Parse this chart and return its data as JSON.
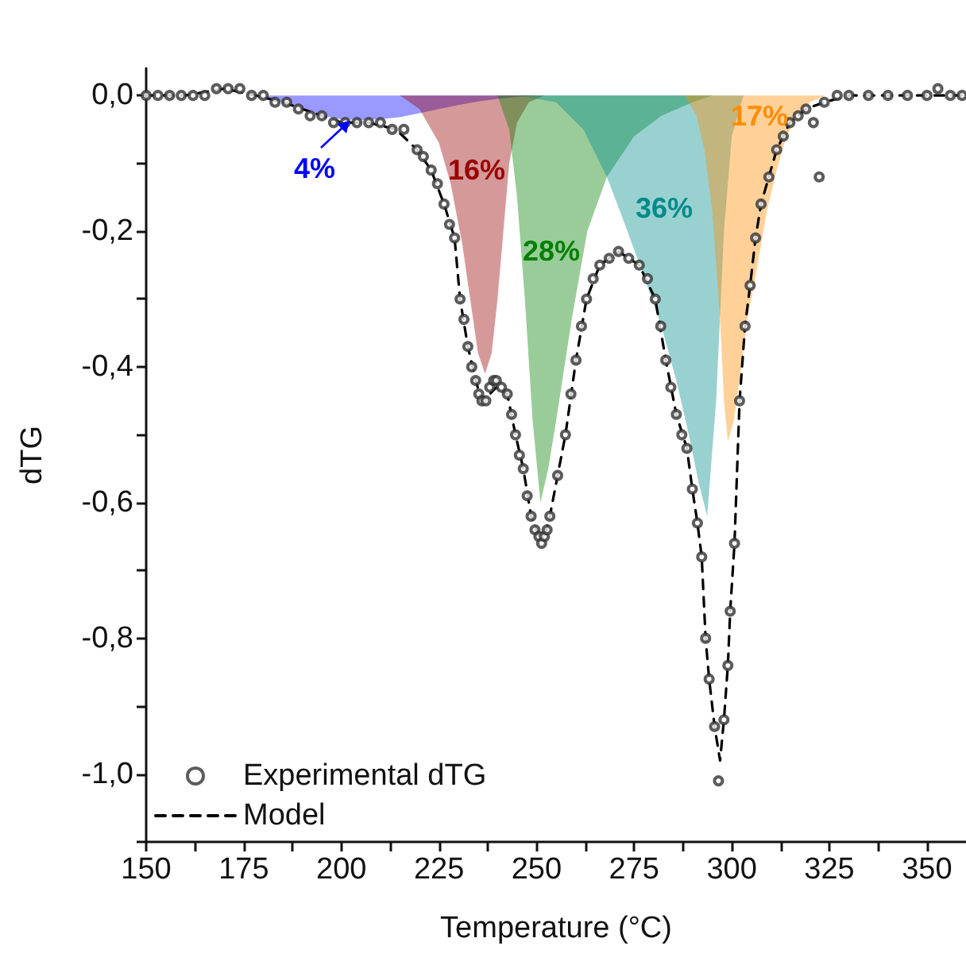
{
  "chart_data": {
    "type": "line",
    "xlabel": "Temperature (°C)",
    "ylabel": "dTG",
    "xlim": [
      150,
      360
    ],
    "ylim": [
      -1.1,
      0.04
    ],
    "xticks": [
      150,
      {
        "value": 162.5,
        "label": null
      },
      175,
      {
        "value": 187.5,
        "label": null
      },
      200,
      {
        "value": 212.5,
        "label": null
      },
      225,
      {
        "value": 237.5,
        "label": null
      },
      250,
      {
        "value": 262.5,
        "label": null
      },
      275,
      {
        "value": 287.5,
        "label": null
      },
      300,
      {
        "value": 312.5,
        "label": null
      },
      325,
      {
        "value": 337.5,
        "label": null
      },
      350
    ],
    "yticks": [
      {
        "value": 0,
        "label": "0,0"
      },
      {
        "value": -0.1,
        "label": null
      },
      {
        "value": -0.2,
        "label": "-0,2"
      },
      {
        "value": -0.3,
        "label": null
      },
      {
        "value": -0.4,
        "label": "-0,4"
      },
      {
        "value": -0.5,
        "label": null
      },
      {
        "value": -0.6,
        "label": "-0,6"
      },
      {
        "value": -0.7,
        "label": null
      },
      {
        "value": -0.8,
        "label": "-0,8"
      },
      {
        "value": -0.9,
        "label": null
      },
      {
        "value": -1.0,
        "label": "-1,0"
      },
      {
        "value": -1.1,
        "label": null
      }
    ],
    "grid": false,
    "legend": "bottom left",
    "series": [
      {
        "type": "area",
        "color": "#0000ff",
        "x": [
          178,
          185,
          190,
          195,
          200,
          205,
          210,
          215,
          220,
          225,
          230,
          235,
          240,
          245,
          250
        ],
        "values": [
          0,
          -0.01,
          -0.02,
          -0.03,
          -0.035,
          -0.036,
          -0.035,
          -0.032,
          -0.026,
          -0.02,
          -0.014,
          -0.009,
          -0.005,
          -0.002,
          0
        ]
      },
      {
        "type": "area",
        "color": "#990000",
        "x": [
          215,
          220,
          225,
          228,
          231,
          233,
          235,
          236.8,
          238.5,
          240,
          241.5,
          243,
          245,
          248,
          252
        ],
        "values": [
          0,
          -0.02,
          -0.07,
          -0.13,
          -0.22,
          -0.3,
          -0.38,
          -0.41,
          -0.38,
          -0.3,
          -0.2,
          -0.1,
          -0.04,
          -0.01,
          0
        ]
      },
      {
        "type": "area",
        "color": "#008000",
        "x": [
          240,
          243,
          245,
          247,
          249,
          251,
          253,
          255,
          259,
          263,
          268,
          275,
          282,
          290,
          295
        ],
        "values": [
          0,
          -0.05,
          -0.15,
          -0.3,
          -0.48,
          -0.6,
          -0.55,
          -0.48,
          -0.33,
          -0.2,
          -0.12,
          -0.06,
          -0.03,
          -0.01,
          0
        ]
      },
      {
        "type": "area",
        "color": "#008b8b",
        "x": [
          245,
          255,
          262,
          268,
          272,
          277.7,
          282,
          285.8,
          289,
          291.5,
          293.7,
          296,
          298,
          300,
          303
        ],
        "values": [
          0,
          -0.01,
          -0.05,
          -0.12,
          -0.18,
          -0.27,
          -0.34,
          -0.42,
          -0.5,
          -0.57,
          -0.62,
          -0.45,
          -0.2,
          -0.06,
          0
        ]
      },
      {
        "type": "area",
        "color": "#ff8c00",
        "x": [
          288,
          291,
          293,
          295,
          297,
          298,
          299,
          300.5,
          302,
          304,
          306,
          309,
          311.5,
          314,
          317,
          320,
          324
        ],
        "values": [
          0,
          -0.03,
          -0.08,
          -0.17,
          -0.33,
          -0.45,
          -0.51,
          -0.48,
          -0.42,
          -0.33,
          -0.27,
          -0.17,
          -0.11,
          -0.06,
          -0.03,
          -0.01,
          0
        ]
      },
      {
        "name": "Model",
        "type": "line",
        "color": "#000000",
        "line_style": "dashed",
        "marker": "none",
        "x": [
          150,
          160,
          170,
          178,
          185,
          190,
          195,
          200,
          207,
          214,
          219.4,
          223,
          226.3,
          229,
          230.4,
          232.4,
          234.4,
          236,
          238,
          239.7,
          242.5,
          244.6,
          246.6,
          248.6,
          250.6,
          252,
          253.4,
          257.4,
          260.1,
          262.8,
          266.2,
          271,
          276.3,
          280.4,
          283.1,
          285.8,
          288.5,
          289.9,
          291.2,
          292.3,
          293.3,
          294.2,
          295.6,
          297,
          298,
          299,
          299.6,
          300.7,
          302,
          303.4,
          304.7,
          306.1,
          307.5,
          309.5,
          311.5,
          314.9,
          319,
          323.7,
          330,
          340,
          350,
          360
        ],
        "values": [
          0,
          0,
          0.01,
          0,
          -0.01,
          -0.02,
          -0.03,
          -0.04,
          -0.04,
          -0.05,
          -0.08,
          -0.11,
          -0.16,
          -0.21,
          -0.3,
          -0.37,
          -0.42,
          -0.45,
          -0.44,
          -0.43,
          -0.44,
          -0.5,
          -0.55,
          -0.62,
          -0.65,
          -0.65,
          -0.62,
          -0.5,
          -0.39,
          -0.3,
          -0.25,
          -0.23,
          -0.25,
          -0.3,
          -0.39,
          -0.47,
          -0.52,
          -0.58,
          -0.63,
          -0.68,
          -0.8,
          -0.86,
          -0.93,
          -0.98,
          -0.92,
          -0.84,
          -0.76,
          -0.66,
          -0.45,
          -0.34,
          -0.28,
          -0.21,
          -0.16,
          -0.12,
          -0.08,
          -0.04,
          -0.02,
          -0.01,
          0,
          0,
          0,
          0
        ]
      },
      {
        "name": "Experimental dTG",
        "type": "scatter",
        "color": "#333333",
        "marker": "circle",
        "x": [
          150,
          153,
          156,
          159,
          162,
          165,
          168,
          171,
          174,
          177,
          180,
          183,
          186,
          189,
          192,
          195,
          198,
          201,
          204,
          207,
          210,
          213,
          216,
          219.4,
          221,
          223,
          224.6,
          226.3,
          227.7,
          229,
          230.4,
          231.4,
          232.4,
          233.4,
          234.4,
          235.2,
          236,
          237,
          238,
          239,
          239.7,
          241,
          242.5,
          243.6,
          244.6,
          245.6,
          246.6,
          247.6,
          248.6,
          249.6,
          250.6,
          251.3,
          252,
          252.7,
          253.4,
          255.4,
          257.4,
          258.8,
          260.1,
          261.5,
          262.8,
          264.5,
          266.2,
          268.6,
          271,
          273.6,
          276.3,
          278.4,
          280.4,
          281.8,
          283.1,
          284.4,
          285.8,
          287.2,
          288.5,
          289.9,
          291.2,
          292.3,
          293.3,
          294.2,
          295.6,
          296.6,
          298,
          299,
          299.6,
          300.7,
          302,
          303.4,
          304.7,
          306.1,
          307.5,
          309.5,
          311.5,
          313.2,
          314.9,
          317,
          319,
          320.9,
          322.4,
          323.7,
          327,
          330,
          335,
          340,
          345,
          350,
          352.8,
          356,
          359
        ],
        "values": [
          0,
          0,
          0,
          0,
          0,
          0,
          0.01,
          0.01,
          0.01,
          0,
          0,
          -0.01,
          -0.01,
          -0.02,
          -0.03,
          -0.03,
          -0.04,
          -0.04,
          -0.04,
          -0.04,
          -0.04,
          -0.05,
          -0.05,
          -0.08,
          -0.09,
          -0.11,
          -0.13,
          -0.16,
          -0.19,
          -0.21,
          -0.3,
          -0.33,
          -0.37,
          -0.4,
          -0.42,
          -0.44,
          -0.45,
          -0.45,
          -0.43,
          -0.42,
          -0.42,
          -0.43,
          -0.44,
          -0.47,
          -0.5,
          -0.53,
          -0.55,
          -0.59,
          -0.62,
          -0.64,
          -0.65,
          -0.66,
          -0.65,
          -0.64,
          -0.62,
          -0.56,
          -0.5,
          -0.44,
          -0.39,
          -0.34,
          -0.3,
          -0.27,
          -0.25,
          -0.24,
          -0.23,
          -0.24,
          -0.25,
          -0.27,
          -0.3,
          -0.34,
          -0.39,
          -0.43,
          -0.47,
          -0.5,
          -0.52,
          -0.58,
          -0.63,
          -0.68,
          -0.8,
          -0.86,
          -0.93,
          -1.01,
          -0.92,
          -0.84,
          -0.76,
          -0.66,
          -0.45,
          -0.34,
          -0.28,
          -0.21,
          -0.16,
          -0.12,
          -0.08,
          -0.06,
          -0.04,
          -0.03,
          -0.02,
          -0.04,
          -0.12,
          -0.01,
          0,
          0,
          0,
          0,
          0,
          0,
          0.01,
          0,
          0
        ]
      }
    ],
    "annotations": [
      "4%",
      "16%",
      "28%",
      "36%",
      "17%"
    ]
  }
}
